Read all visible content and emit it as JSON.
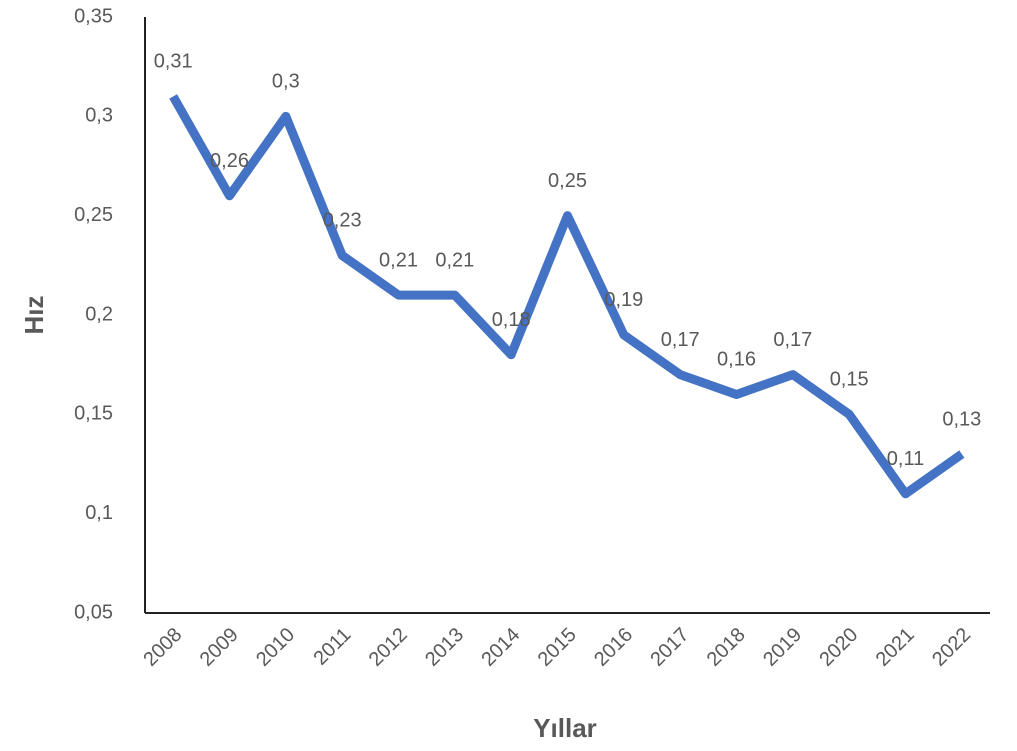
{
  "chart_data": {
    "type": "line",
    "xlabel": "Yıllar",
    "ylabel": "Hız",
    "categories": [
      "2008",
      "2009",
      "2010",
      "2011",
      "2012",
      "2013",
      "2014",
      "2015",
      "2016",
      "2017",
      "2018",
      "2019",
      "2020",
      "2021",
      "2022"
    ],
    "series": [
      {
        "color": "#4472c4",
        "values": [
          0.31,
          0.26,
          0.3,
          0.23,
          0.21,
          0.21,
          0.18,
          0.25,
          0.19,
          0.17,
          0.16,
          0.17,
          0.15,
          0.11,
          0.13
        ],
        "value_labels": [
          "0,31",
          "0,26",
          "0,3",
          "0,23",
          "0,21",
          "0,21",
          "0,18",
          "0,25",
          "0,19",
          "0,17",
          "0,16",
          "0,17",
          "0,15",
          "0,11",
          "0,13"
        ]
      }
    ],
    "ylim": [
      0.05,
      0.35
    ],
    "yticks": [
      {
        "value": 0.05,
        "label": "0,05"
      },
      {
        "value": 0.1,
        "label": "0,1"
      },
      {
        "value": 0.15,
        "label": "0,15"
      },
      {
        "value": 0.2,
        "label": "0,2"
      },
      {
        "value": 0.25,
        "label": "0,25"
      },
      {
        "value": 0.3,
        "label": "0,3"
      },
      {
        "value": 0.35,
        "label": "0,35"
      }
    ],
    "grid": false
  }
}
